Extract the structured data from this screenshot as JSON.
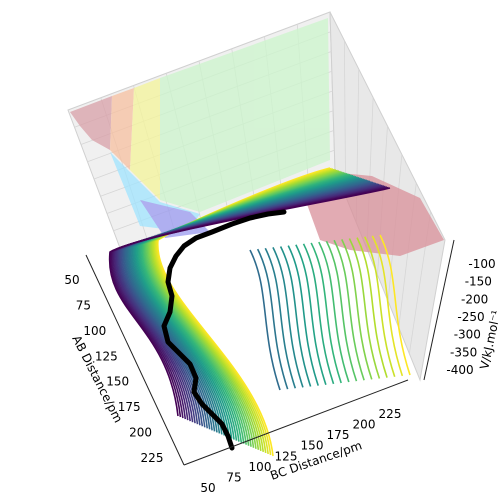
{
  "chart_data": {
    "type": "surface-3d",
    "title": "",
    "xlabel": "AB Distance/pm",
    "ylabel": "BC Distance/pm",
    "zlabel": "V/kJ.mol⁻¹",
    "x_ticks": [
      "50",
      "75",
      "100",
      "125",
      "150",
      "175",
      "200",
      "225"
    ],
    "y_ticks": [
      "50",
      "75",
      "100",
      "125",
      "150",
      "175",
      "200",
      "225"
    ],
    "z_ticks": [
      "-100",
      "-150",
      "-200",
      "-250",
      "-300",
      "-350",
      "-400"
    ],
    "xlim": [
      40,
      240
    ],
    "ylim": [
      40,
      240
    ],
    "zlim": [
      -420,
      -80
    ],
    "grid": true,
    "colormap": "viridis",
    "contour_levels": 40,
    "trajectory_color": "#000000",
    "projection_fill_colors": [
      "#d9a0a8",
      "#f7c0a0",
      "#f5f59a",
      "#ccf5cc",
      "#a0e4ff",
      "#9a9af0"
    ]
  }
}
